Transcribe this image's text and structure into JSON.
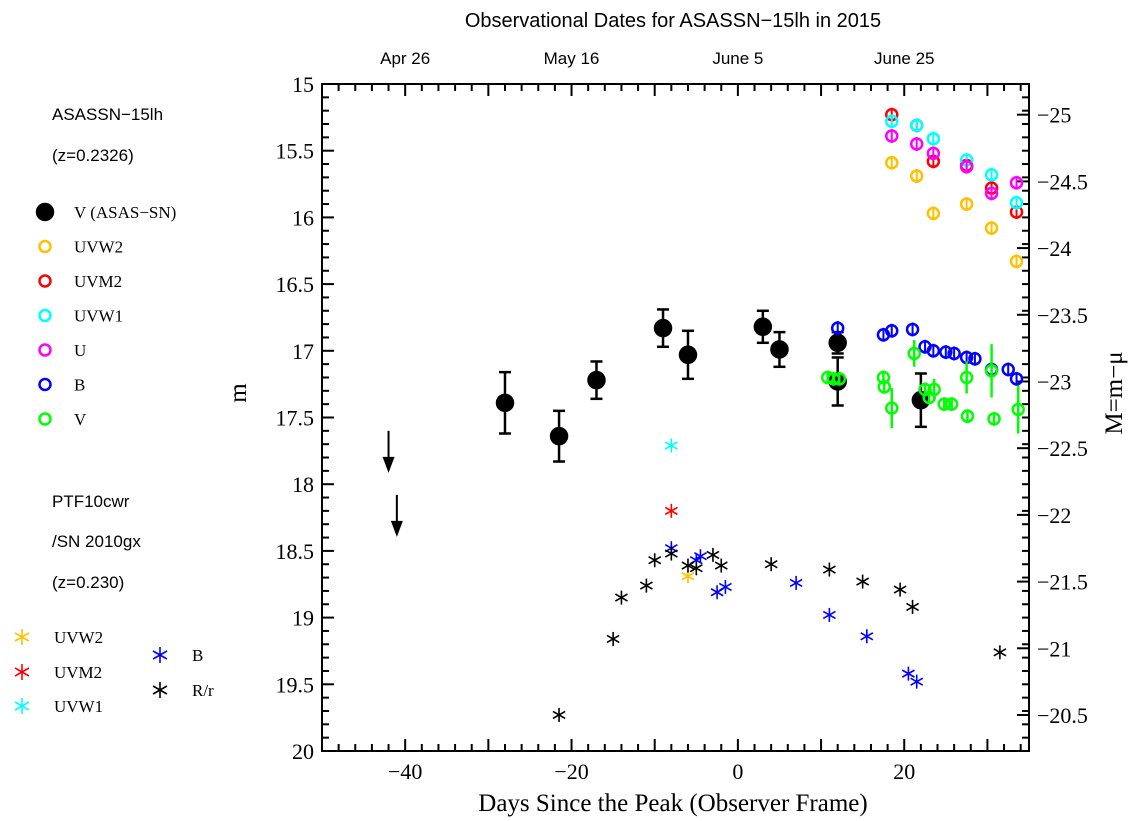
{
  "chart_data": {
    "type": "scatter",
    "title": "Observational Dates for ASASSN−15lh in 2015",
    "xlabel": "Days Since the Peak (Observer Frame)",
    "ylabel": "m",
    "ylabel_right": "M=m−μ",
    "xlim": [
      -50,
      35
    ],
    "ylim": [
      15,
      20
    ],
    "y_inverted": true,
    "x_ticks": [
      -40,
      -20,
      0,
      20
    ],
    "y_ticks": [
      "15",
      "15.5",
      "16",
      "16.5",
      "17",
      "17.5",
      "18",
      "18.5",
      "19",
      "19.5",
      "20"
    ],
    "right_ticks": [
      "−25",
      "−24.5",
      "−24",
      "−23.5",
      "−23",
      "−22.5",
      "−22",
      "−21.5",
      "−21",
      "−20.5"
    ],
    "right_offset": 40.23,
    "top_axis": [
      {
        "label": "Apr 26",
        "x": -40
      },
      {
        "label": "May 16",
        "x": -20
      },
      {
        "label": "June 5",
        "x": 0
      },
      {
        "label": "June 25",
        "x": 20
      }
    ],
    "grid": false,
    "legend_position": "left, outside",
    "annotations": {
      "asassn_name": "ASASSN−15lh",
      "asassn_z": "(z=0.2326)",
      "ptf_name": "PTF10cwr",
      "ptf_alt": "/SN 2010gx",
      "ptf_z": "(z=0.230)"
    },
    "legend_circles": [
      {
        "label": "V (ASAS−SN)",
        "color": "#000000",
        "filled": true
      },
      {
        "label": "UVW2",
        "color": "#ffc000",
        "filled": false
      },
      {
        "label": "UVM2",
        "color": "#ff0000",
        "filled": false
      },
      {
        "label": "UVW1",
        "color": "#00ffff",
        "filled": false
      },
      {
        "label": "U",
        "color": "#ff00ff",
        "filled": false
      },
      {
        "label": "B",
        "color": "#0000ff",
        "filled": false
      },
      {
        "label": "V",
        "color": "#00ff00",
        "filled": false
      }
    ],
    "legend_stars": [
      {
        "label": "UVW2",
        "color": "#ffc000"
      },
      {
        "label": "UVM2",
        "color": "#ff0000"
      },
      {
        "label": "UVW1",
        "color": "#00ffff"
      },
      {
        "label": "B",
        "color": "#0000ff"
      },
      {
        "label": "R/r",
        "color": "#000000"
      }
    ],
    "series": [
      {
        "name": "V (ASAS−SN)",
        "marker": "filled-circle",
        "color": "#000000",
        "points": [
          [
            -28,
            17.39,
            0.23
          ],
          [
            -21.5,
            17.64,
            0.19
          ],
          [
            -17,
            17.22,
            0.14
          ],
          [
            -9,
            16.83,
            0.14
          ],
          [
            -6,
            17.03,
            0.18
          ],
          [
            3,
            16.82,
            0.12
          ],
          [
            5,
            16.99,
            0.13
          ],
          [
            12,
            16.94,
            0.08
          ],
          [
            12,
            17.23,
            0.18
          ],
          [
            22,
            17.37,
            0.2
          ]
        ]
      },
      {
        "name": "UVW2",
        "marker": "open-circle",
        "color": "#ffc000",
        "points": [
          [
            18.5,
            15.59
          ],
          [
            21.5,
            15.69
          ],
          [
            23.5,
            15.97
          ],
          [
            27.5,
            15.9
          ],
          [
            30.5,
            16.08
          ],
          [
            33.5,
            16.33
          ]
        ]
      },
      {
        "name": "UVM2",
        "marker": "open-circle",
        "color": "#ff0000",
        "points": [
          [
            18.5,
            15.23
          ],
          [
            21.5,
            15.31
          ],
          [
            23.5,
            15.58
          ],
          [
            27.5,
            15.61
          ],
          [
            30.5,
            15.78
          ],
          [
            33.5,
            15.96
          ]
        ]
      },
      {
        "name": "UVW1",
        "marker": "open-circle",
        "color": "#00ffff",
        "points": [
          [
            18.5,
            15.28
          ],
          [
            21.5,
            15.31
          ],
          [
            23.5,
            15.41
          ],
          [
            27.5,
            15.57
          ],
          [
            30.5,
            15.68
          ],
          [
            33.5,
            15.89
          ]
        ]
      },
      {
        "name": "U",
        "marker": "open-circle",
        "color": "#ff00ff",
        "points": [
          [
            18.5,
            15.39
          ],
          [
            21.5,
            15.45
          ],
          [
            23.5,
            15.52
          ],
          [
            27.5,
            15.62
          ],
          [
            30.5,
            15.82
          ],
          [
            33.5,
            15.74
          ]
        ]
      },
      {
        "name": "B",
        "marker": "open-circle",
        "color": "#0000ff",
        "points": [
          [
            12,
            16.83
          ],
          [
            17.5,
            16.88
          ],
          [
            18.5,
            16.85
          ],
          [
            21,
            16.84
          ],
          [
            22.5,
            16.97
          ],
          [
            23.5,
            17.0
          ],
          [
            25,
            17.01
          ],
          [
            26,
            17.02
          ],
          [
            27.5,
            17.05
          ],
          [
            28.5,
            17.06
          ],
          [
            30.5,
            17.14
          ],
          [
            32.5,
            17.14
          ],
          [
            33.5,
            17.21
          ]
        ]
      },
      {
        "name": "V",
        "marker": "open-circle",
        "color": "#00ff00",
        "error_bars": true,
        "points": [
          [
            10.8,
            17.2,
            0.03
          ],
          [
            11.5,
            17.21,
            0.03
          ],
          [
            12.2,
            17.21,
            0.03
          ],
          [
            17.5,
            17.2,
            0.05
          ],
          [
            17.6,
            17.27,
            0.05
          ],
          [
            18.5,
            17.43,
            0.15
          ],
          [
            21.2,
            17.02,
            0.1
          ],
          [
            22.5,
            17.29,
            0.05
          ],
          [
            23,
            17.35,
            0.05
          ],
          [
            23.6,
            17.29,
            0.08
          ],
          [
            24.8,
            17.4,
            0.04
          ],
          [
            25.7,
            17.4,
            0.04
          ],
          [
            27.5,
            17.2,
            0.12
          ],
          [
            27.6,
            17.49,
            0.04
          ],
          [
            30.8,
            17.51,
            0.04
          ],
          [
            33.7,
            17.44,
            0.18
          ],
          [
            30.5,
            17.15,
            0.2
          ]
        ]
      },
      {
        "name": "UVW2",
        "marker": "star",
        "color": "#ffc000",
        "points": [
          [
            -6,
            18.69
          ]
        ]
      },
      {
        "name": "UVM2",
        "marker": "star",
        "color": "#ff0000",
        "points": [
          [
            -8,
            18.2
          ]
        ]
      },
      {
        "name": "UVW1",
        "marker": "star",
        "color": "#00ffff",
        "points": [
          [
            -8,
            17.71
          ]
        ]
      },
      {
        "name": "B",
        "marker": "star",
        "color": "#0000ff",
        "points": [
          [
            -8,
            18.48
          ],
          [
            -5,
            18.57
          ],
          [
            -4.5,
            18.54
          ],
          [
            -2.5,
            18.81
          ],
          [
            -1.5,
            18.77
          ],
          [
            7,
            18.74
          ],
          [
            11,
            18.98
          ],
          [
            15.5,
            19.14
          ],
          [
            20.5,
            19.42
          ],
          [
            21.5,
            19.48
          ]
        ]
      },
      {
        "name": "R/r",
        "marker": "star",
        "color": "#000000",
        "points": [
          [
            -21.5,
            19.73
          ],
          [
            -15,
            19.16
          ],
          [
            -14,
            18.85
          ],
          [
            -11,
            18.76
          ],
          [
            -10,
            18.57
          ],
          [
            -8,
            18.52
          ],
          [
            -6,
            18.61
          ],
          [
            -5,
            18.63
          ],
          [
            -3,
            18.53
          ],
          [
            -2,
            18.61
          ],
          [
            4,
            18.6
          ],
          [
            11,
            18.64
          ],
          [
            15,
            18.73
          ],
          [
            19.5,
            18.79
          ],
          [
            21,
            18.92
          ],
          [
            31.5,
            19.26
          ]
        ]
      }
    ],
    "upper_limits": [
      [
        -42,
        17.78
      ],
      [
        -41,
        18.26
      ]
    ]
  }
}
